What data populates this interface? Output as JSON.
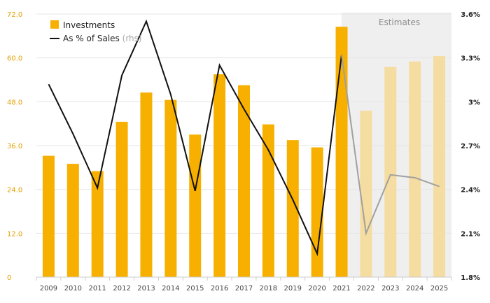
{
  "chart_data": {
    "type": "bar",
    "categories": [
      "2009",
      "2010",
      "2011",
      "2012",
      "2013",
      "2014",
      "2015",
      "2016",
      "2017",
      "2018",
      "2019",
      "2020",
      "2021",
      "2022",
      "2023",
      "2024",
      "2025"
    ],
    "estimate_categories": [
      "2022",
      "2023",
      "2024",
      "2025"
    ],
    "series": [
      {
        "name": "Investments",
        "type": "bar",
        "axis": "left",
        "values": [
          33.2,
          31.0,
          29.0,
          42.5,
          50.5,
          48.5,
          39.0,
          55.5,
          52.5,
          41.8,
          37.5,
          35.5,
          68.5,
          45.5,
          57.5,
          59.0,
          60.5
        ]
      },
      {
        "name": "As % of Sales",
        "name_suffix": "(rhs)",
        "type": "line",
        "axis": "right",
        "values": [
          3.12,
          2.78,
          2.41,
          3.18,
          3.55,
          3.05,
          2.39,
          3.25,
          2.95,
          2.67,
          2.33,
          1.96,
          3.32,
          2.1,
          2.5,
          2.48,
          2.42
        ]
      }
    ],
    "left_axis": {
      "ylim": [
        0,
        72
      ],
      "ticks": [
        "0",
        "12.0",
        "24.0",
        "36.0",
        "48.0",
        "60.0",
        "72.0"
      ],
      "tick_values": [
        0,
        12,
        24,
        36,
        48,
        60,
        72
      ]
    },
    "right_axis": {
      "ylim": [
        1.8,
        3.6
      ],
      "ticks": [
        "1.8%",
        "2.1%",
        "2.4%",
        "2.7%",
        "3%",
        "3.3%",
        "3.6%"
      ],
      "tick_values": [
        1.8,
        2.1,
        2.4,
        2.7,
        3.0,
        3.3,
        3.6
      ]
    },
    "estimates_label": "Estimates",
    "legend": {
      "placement": "top-left"
    },
    "grid": true,
    "colors": {
      "bar": "#f7b000",
      "bar_estimate": "#f5dca0",
      "line": "#111111",
      "line_estimate": "#a0a0a0",
      "estimate_bg": "#efefef",
      "left_ticks": "#e2a000"
    }
  }
}
